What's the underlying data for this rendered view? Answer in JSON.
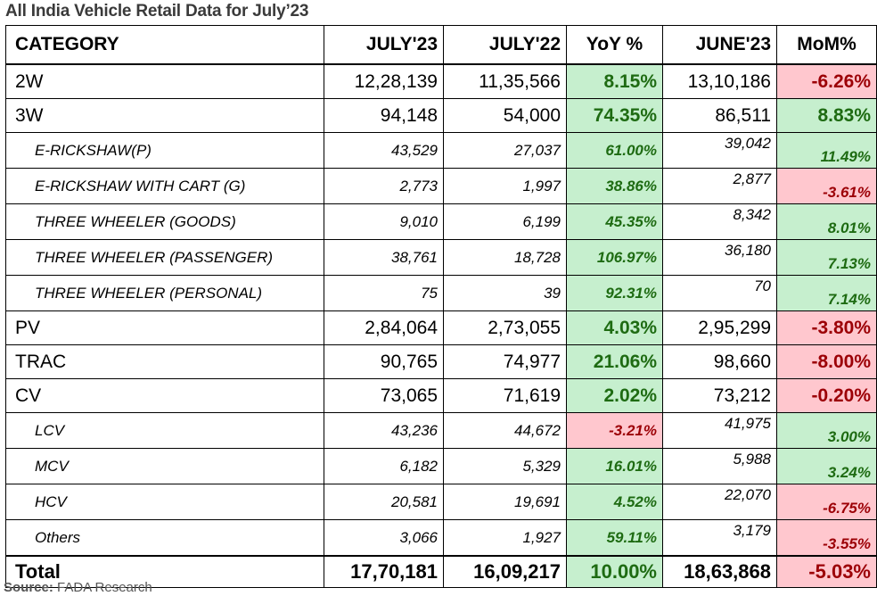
{
  "title": "All India Vehicle Retail Data for July’23",
  "headers": {
    "category": "CATEGORY",
    "july23": "JULY'23",
    "july22": "JULY'22",
    "yoy": "YoY %",
    "june23": "JUNE'23",
    "mom": "MoM%"
  },
  "rows": [
    {
      "category": "2W",
      "july23": "12,28,139",
      "july22": "11,35,566",
      "yoy": "8.15%",
      "yoy_sign": "pos",
      "june23": "13,10,186",
      "mom": "-6.26%",
      "mom_sign": "neg",
      "level": "main"
    },
    {
      "category": "3W",
      "july23": "94,148",
      "july22": "54,000",
      "yoy": "74.35%",
      "yoy_sign": "pos",
      "june23": "86,511",
      "mom": "8.83%",
      "mom_sign": "pos",
      "level": "main"
    },
    {
      "category": "E-RICKSHAW(P)",
      "july23": "43,529",
      "july22": "27,037",
      "yoy": "61.00%",
      "yoy_sign": "pos",
      "june23": "39,042",
      "mom": "11.49%",
      "mom_sign": "pos",
      "level": "sub"
    },
    {
      "category": "E-RICKSHAW WITH CART (G)",
      "july23": "2,773",
      "july22": "1,997",
      "yoy": "38.86%",
      "yoy_sign": "pos",
      "june23": "2,877",
      "mom": "-3.61%",
      "mom_sign": "neg",
      "level": "sub"
    },
    {
      "category": "THREE WHEELER (GOODS)",
      "july23": "9,010",
      "july22": "6,199",
      "yoy": "45.35%",
      "yoy_sign": "pos",
      "june23": "8,342",
      "mom": "8.01%",
      "mom_sign": "pos",
      "level": "sub"
    },
    {
      "category": "THREE WHEELER (PASSENGER)",
      "july23": "38,761",
      "july22": "18,728",
      "yoy": "106.97%",
      "yoy_sign": "pos",
      "june23": "36,180",
      "mom": "7.13%",
      "mom_sign": "pos",
      "level": "sub"
    },
    {
      "category": "THREE WHEELER (PERSONAL)",
      "july23": "75",
      "july22": "39",
      "yoy": "92.31%",
      "yoy_sign": "pos",
      "june23": "70",
      "mom": "7.14%",
      "mom_sign": "pos",
      "level": "sub"
    },
    {
      "category": "PV",
      "july23": "2,84,064",
      "july22": "2,73,055",
      "yoy": "4.03%",
      "yoy_sign": "pos",
      "june23": "2,95,299",
      "mom": "-3.80%",
      "mom_sign": "neg",
      "level": "main"
    },
    {
      "category": "TRAC",
      "july23": "90,765",
      "july22": "74,977",
      "yoy": "21.06%",
      "yoy_sign": "pos",
      "june23": "98,660",
      "mom": "-8.00%",
      "mom_sign": "neg",
      "level": "main"
    },
    {
      "category": "CV",
      "july23": "73,065",
      "july22": "71,619",
      "yoy": "2.02%",
      "yoy_sign": "pos",
      "june23": "73,212",
      "mom": "-0.20%",
      "mom_sign": "neg",
      "level": "main"
    },
    {
      "category": "LCV",
      "july23": "43,236",
      "july22": "44,672",
      "yoy": "-3.21%",
      "yoy_sign": "neg",
      "june23": "41,975",
      "mom": "3.00%",
      "mom_sign": "pos",
      "level": "sub"
    },
    {
      "category": "MCV",
      "july23": "6,182",
      "july22": "5,329",
      "yoy": "16.01%",
      "yoy_sign": "pos",
      "june23": "5,988",
      "mom": "3.24%",
      "mom_sign": "pos",
      "level": "sub"
    },
    {
      "category": "HCV",
      "july23": "20,581",
      "july22": "19,691",
      "yoy": "4.52%",
      "yoy_sign": "pos",
      "june23": "22,070",
      "mom": "-6.75%",
      "mom_sign": "neg",
      "level": "sub"
    },
    {
      "category": "Others",
      "july23": "3,066",
      "july22": "1,927",
      "yoy": "59.11%",
      "yoy_sign": "pos",
      "june23": "3,179",
      "mom": "-3.55%",
      "mom_sign": "neg",
      "level": "sub"
    },
    {
      "category": "Total",
      "july23": "17,70,181",
      "july22": "16,09,217",
      "yoy": "10.00%",
      "yoy_sign": "pos",
      "june23": "18,63,868",
      "mom": "-5.03%",
      "mom_sign": "neg",
      "level": "total"
    }
  ],
  "source": {
    "label": "Source:",
    "text": " FADA Research"
  },
  "colors": {
    "positive_bg": "#c6efce",
    "positive_text": "#1e6b12",
    "negative_bg": "#ffc7ce",
    "negative_text": "#9c0006"
  }
}
